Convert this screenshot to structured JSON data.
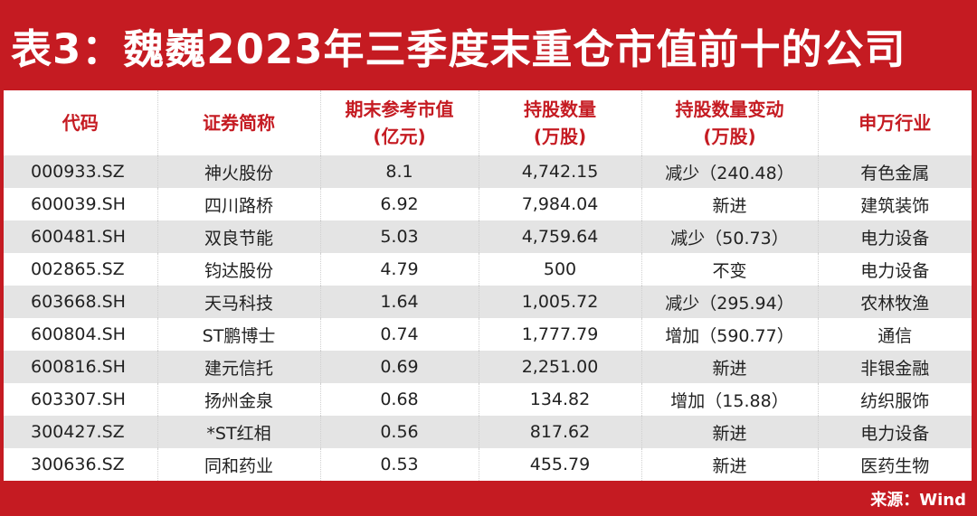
{
  "title": "表3：魏巍2023年三季度末重仓市值前十的公司",
  "headers": [
    {
      "line1": "代码",
      "line2": ""
    },
    {
      "line1": "证券简称",
      "line2": ""
    },
    {
      "line1": "期末参考市值",
      "line2": "(亿元)"
    },
    {
      "line1": "持股数量",
      "line2": "(万股)"
    },
    {
      "line1": "持股数量变动",
      "line2": "(万股)"
    },
    {
      "line1": "申万行业",
      "line2": ""
    }
  ],
  "rows": [
    {
      "code": "000933.SZ",
      "name": "神火股份",
      "value": "8.1",
      "shares": "4,742.15",
      "change": "减少（240.48）",
      "industry": "有色金属"
    },
    {
      "code": "600039.SH",
      "name": "四川路桥",
      "value": "6.92",
      "shares": "7,984.04",
      "change": "新进",
      "industry": "建筑装饰"
    },
    {
      "code": "600481.SH",
      "name": "双良节能",
      "value": "5.03",
      "shares": "4,759.64",
      "change": "减少（50.73）",
      "industry": "电力设备"
    },
    {
      "code": "002865.SZ",
      "name": "钧达股份",
      "value": "4.79",
      "shares": "500",
      "change": "不变",
      "industry": "电力设备"
    },
    {
      "code": "603668.SH",
      "name": "天马科技",
      "value": "1.64",
      "shares": "1,005.72",
      "change": "减少（295.94）",
      "industry": "农林牧渔"
    },
    {
      "code": "600804.SH",
      "name": "ST鹏博士",
      "value": "0.74",
      "shares": "1,777.79",
      "change": "增加（590.77）",
      "industry": "通信"
    },
    {
      "code": "600816.SH",
      "name": "建元信托",
      "value": "0.69",
      "shares": "2,251.00",
      "change": "新进",
      "industry": "非银金融"
    },
    {
      "code": "603307.SH",
      "name": "扬州金泉",
      "value": "0.68",
      "shares": "134.82",
      "change": "增加（15.88）",
      "industry": "纺织服饰"
    },
    {
      "code": "300427.SZ",
      "name": "*ST红相",
      "value": "0.56",
      "shares": "817.62",
      "change": "新进",
      "industry": "电力设备"
    },
    {
      "code": "300636.SZ",
      "name": "同和药业",
      "value": "0.53",
      "shares": "455.79",
      "change": "新进",
      "industry": "医药生物"
    }
  ],
  "source": "来源：Wind",
  "colors": {
    "brand_red": "#c51b22",
    "header_text": "#c51b22",
    "stripe": "#e4e4e4"
  }
}
